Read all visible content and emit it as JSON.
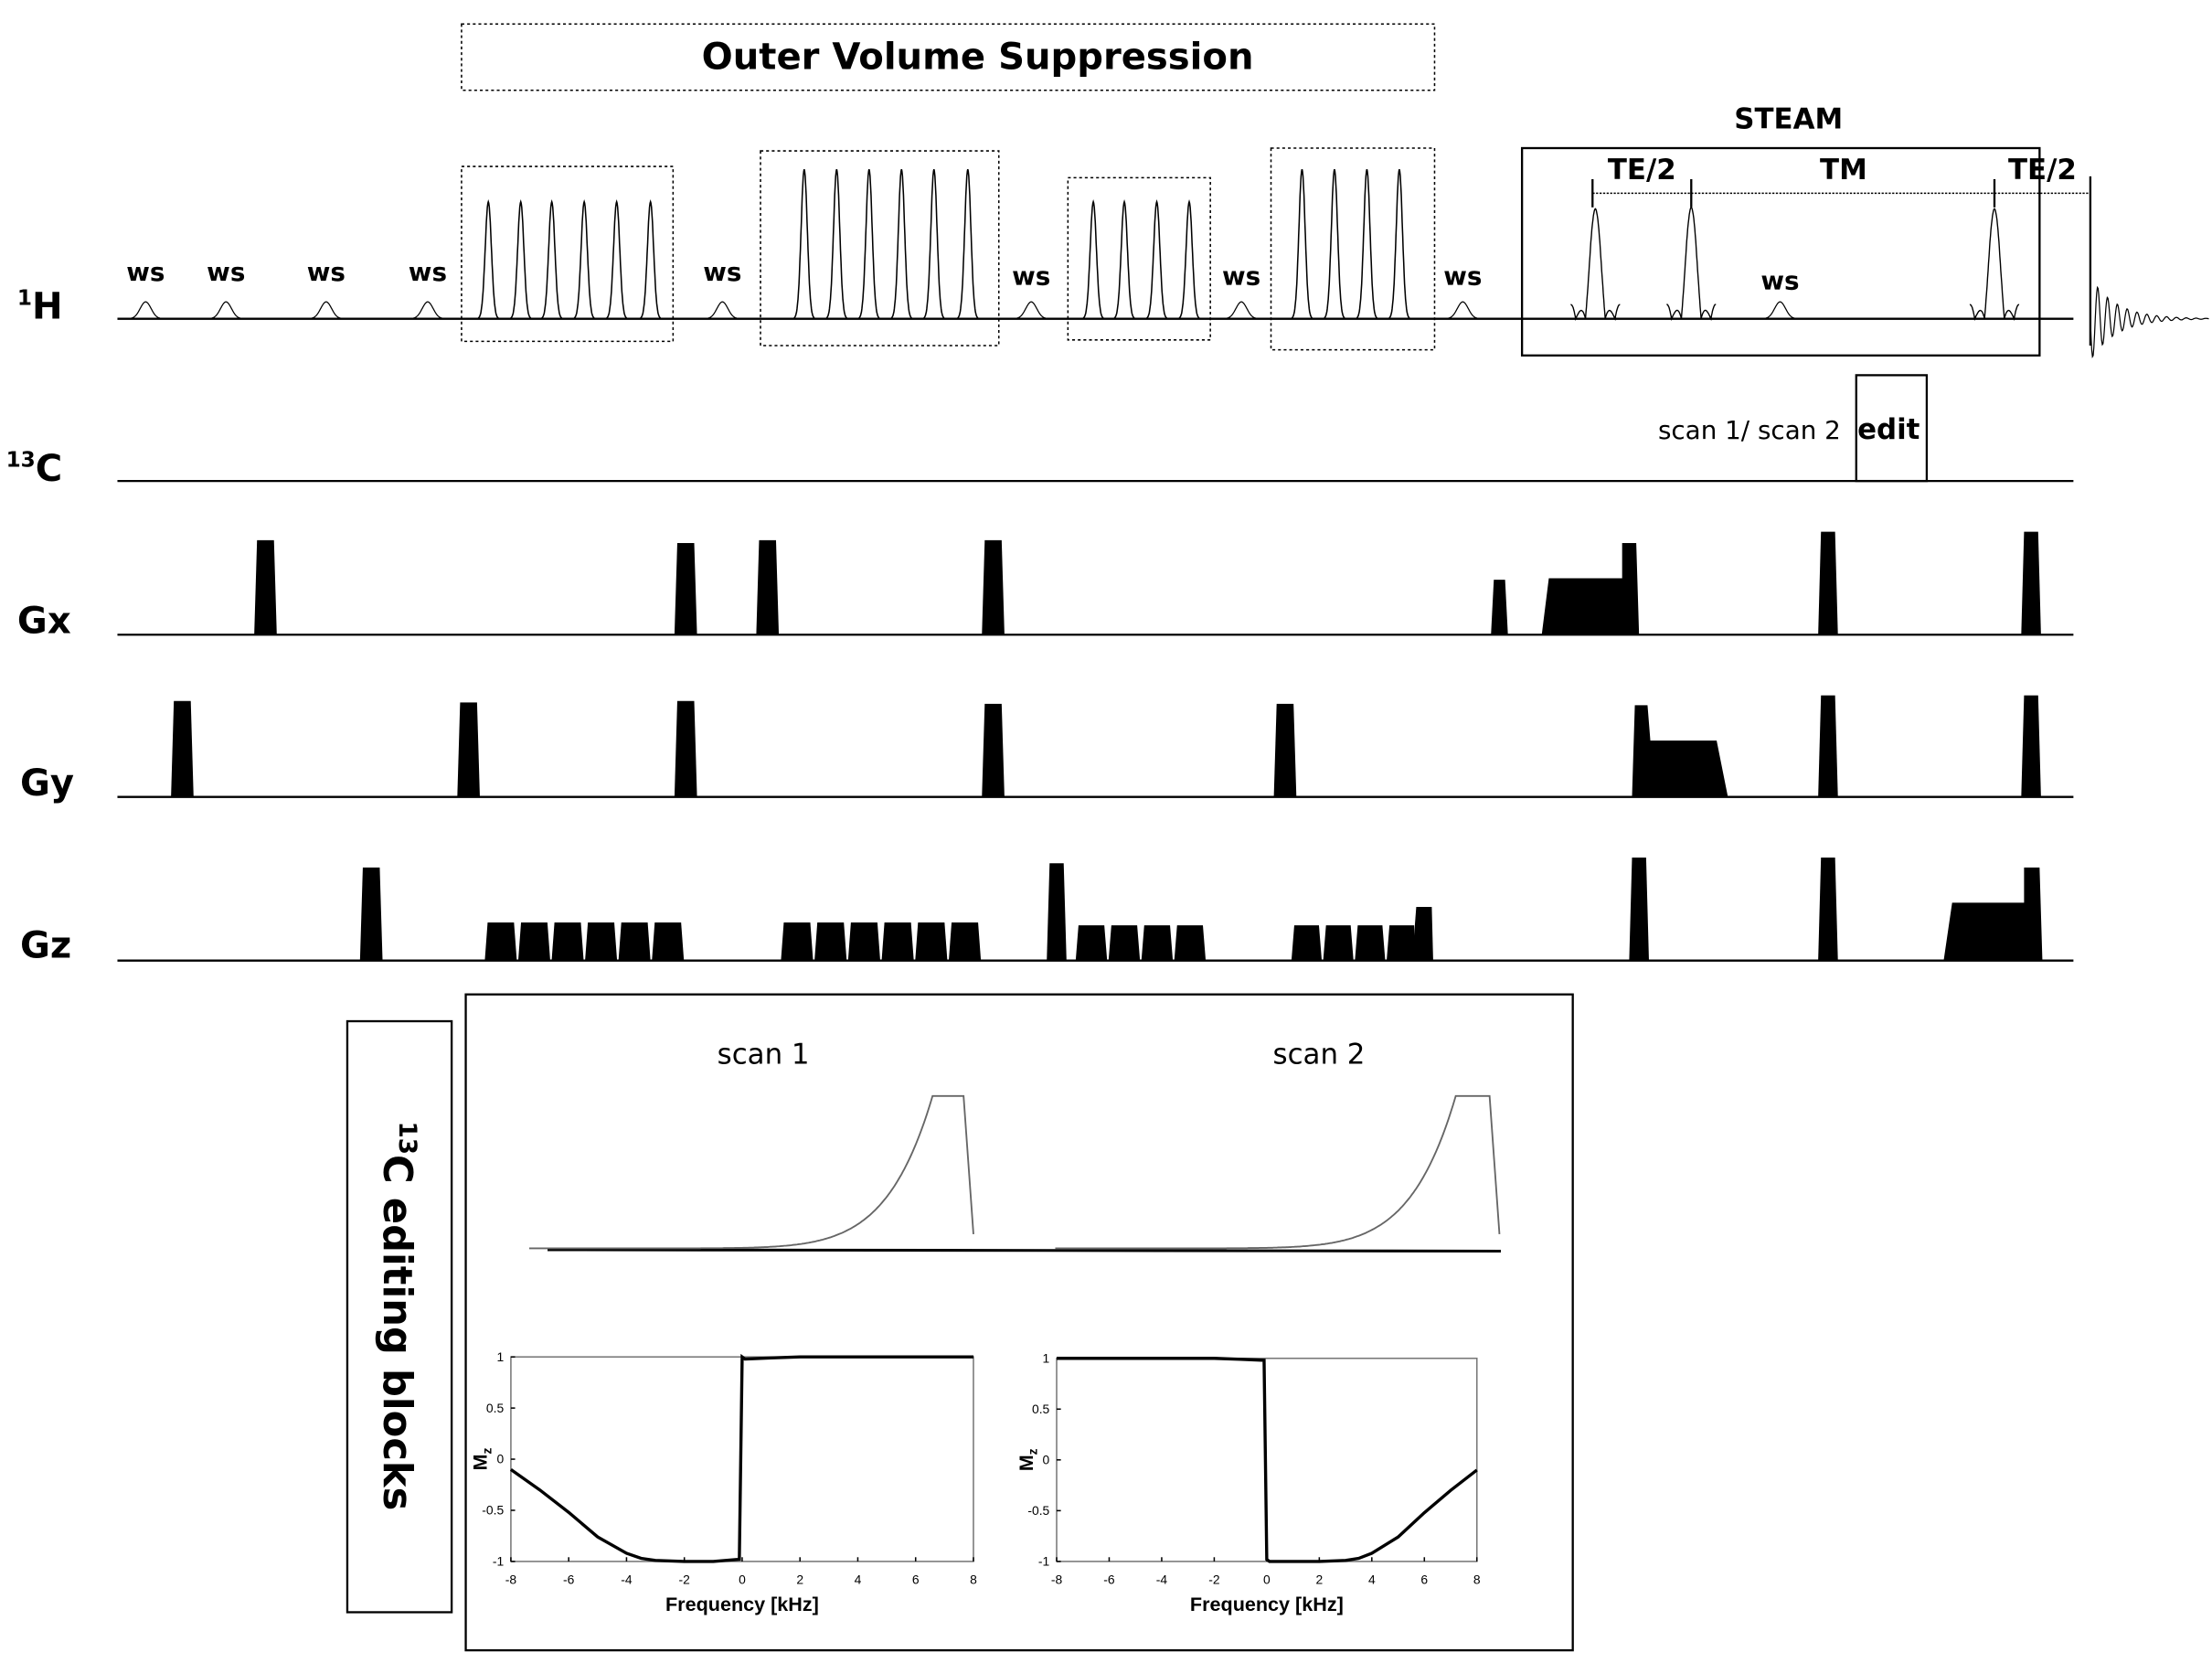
{
  "title": "Outer Volume Suppression",
  "channels": {
    "h1": {
      "sup": "1",
      "base": "H"
    },
    "c13": {
      "sup": "13",
      "base": "C"
    },
    "gx": "Gx",
    "gy": "Gy",
    "gz": "Gz"
  },
  "ws_label": "ws",
  "steam": {
    "title": "STEAM",
    "te2_first": "TE/2",
    "tm": "TM",
    "te2_second": "TE/2"
  },
  "edit": {
    "scan_text": "scan 1/ scan 2",
    "label": "edit"
  },
  "editing_blocks": {
    "sup": "13",
    "text": "C editing blocks"
  },
  "scan_labels": [
    "scan 1",
    "scan 2"
  ],
  "chart_data": [
    {
      "type": "line",
      "title": "scan 1",
      "xlabel": "Frequency [kHz]",
      "ylabel": "Mz",
      "xlim": [
        -8,
        8
      ],
      "ylim": [
        -1,
        1
      ],
      "xticks": [
        "-8",
        "-6",
        "-4",
        "-2",
        "0",
        "2",
        "4",
        "6",
        "8"
      ],
      "yticks": [
        "-1",
        "-0.5",
        "0",
        "0.5",
        "1"
      ],
      "x": [
        -8,
        -7,
        -6,
        -5,
        -4,
        -3.5,
        -3,
        -2,
        -1,
        -0.1,
        0,
        0.1,
        1,
        2,
        4,
        6,
        8
      ],
      "y": [
        -0.1,
        -0.3,
        -0.52,
        -0.76,
        -0.92,
        -0.97,
        -0.99,
        -1,
        -1,
        -0.98,
        1,
        0.98,
        0.99,
        1,
        1,
        1,
        1
      ]
    },
    {
      "type": "line",
      "title": "scan 2",
      "xlabel": "Frequency [kHz]",
      "ylabel": "Mz",
      "xlim": [
        -8,
        8
      ],
      "ylim": [
        -1,
        1
      ],
      "xticks": [
        "-8",
        "-6",
        "-4",
        "-2",
        "0",
        "2",
        "4",
        "6",
        "8"
      ],
      "yticks": [
        "-1",
        "-0.5",
        "0",
        "0.5",
        "1"
      ],
      "x": [
        -8,
        -6,
        -4,
        -2,
        -1,
        -0.1,
        0,
        0.1,
        1,
        2,
        3,
        3.5,
        4,
        5,
        6,
        7,
        8
      ],
      "y": [
        1,
        1,
        1,
        1,
        0.99,
        0.98,
        -0.98,
        -1,
        -1,
        -1,
        -0.99,
        -0.97,
        -0.92,
        -0.76,
        -0.52,
        -0.3,
        -0.1
      ]
    }
  ]
}
